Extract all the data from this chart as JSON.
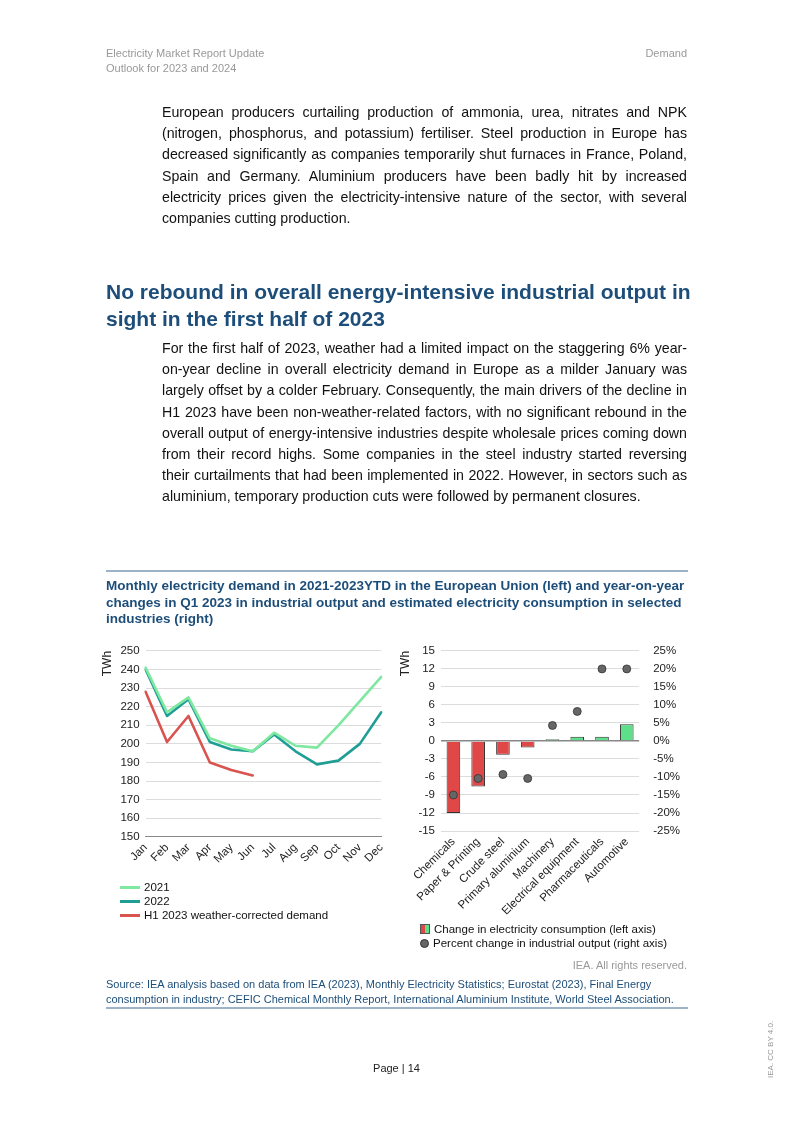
{
  "chart_data": [
    {
      "type": "line",
      "title": "Monthly electricity demand in 2021-2023YTD in the European Union (left) and year-on-year changes in Q1 2023 in industrial output and estimated electricity consumption in selected industries (right)",
      "ylabel": "TWh",
      "annotations": [
        "Electricity Market Report Update",
        "Outlook for 2023 and 2024",
        "Demand",
        "European producers curtailing production of ammonia, urea, nitrates and NPK (nitrogen, phosphorus, and potassium) fertiliser. Steel production in Europe has decreased significantly as companies temporarily shut furnaces in France, Poland, Spain and Germany. Aluminium producers have been badly hit by increased electricity prices given the electricity-intensive nature of the sector, with several companies cutting production.",
        "No rebound in overall energy-intensive industrial output in sight in the first half of 2023",
        "For the first half of 2023, weather had a limited impact on the staggering 6% year-on-year decline in overall electricity demand in Europe as a milder January was largely offset by a colder February. Consequently, the main drivers of the decline in H1 2023 have been non-weather-related factors, with no significant rebound in the overall output of energy-intensive industries despite wholesale prices coming down from their record highs. Some companies in the steel industry started reversing their curtailments that had been implemented in 2022. However, in sectors such as aluminium, temporary production cuts were followed by permanent closures."
      ],
      "categories": [
        "Jan",
        "Feb",
        "Mar",
        "Apr",
        "May",
        "Jun",
        "Jul",
        "Aug",
        "Sep",
        "Oct",
        "Nov",
        "Dec"
      ],
      "series": [
        {
          "name": "2021",
          "color": "#7ee8a0",
          "values": [
            241,
            217,
            225,
            203,
            199,
            196,
            206,
            199,
            198,
            210,
            223,
            236
          ]
        },
        {
          "name": "2022",
          "color": "#1f9e96",
          "values": [
            240,
            215,
            224,
            201,
            197,
            196,
            205,
            196,
            189,
            191,
            200,
            217
          ]
        },
        {
          "name": "H1 2023 weather-corrected demand",
          "color": "#d9534f",
          "values": [
            228,
            201,
            215,
            190,
            186,
            183,
            null,
            null,
            null,
            null,
            null,
            null
          ]
        }
      ],
      "ylim": [
        150,
        250
      ],
      "yticks": [
        150,
        160,
        170,
        180,
        190,
        200,
        210,
        220,
        230,
        240,
        250
      ],
      "grid": "y",
      "legend": "bottom",
      "marker": "none",
      "line_style": "solid"
    },
    {
      "type": "bar",
      "ylabel": "TWh",
      "annotations": [
        "IEA. All rights reserved.",
        "Source: IEA analysis based on data from IEA (2023), Monthly Electricity Statistics; Eurostat (2023), Final Energy consumption in industry; CEFIC Chemical Monthly Report, International Aluminium Institute, World Steel Association.",
        "Page | 14",
        "IEA. CC BY 4.0."
      ],
      "categories": [
        "Chemicals",
        "Paper & Printing",
        "Crude steel",
        "Primary aluminium",
        "Machinery",
        "Electrical equipment",
        "Pharmaceuticals",
        "Automotive"
      ],
      "series": [
        {
          "name": "Change in electricity consumption (left axis)",
          "colors": [
            "#e04848",
            "#e04848",
            "#e04848",
            "#e04848",
            "#5ee08a",
            "#5ee08a",
            "#5ee08a",
            "#5ee08a"
          ],
          "values": [
            -12,
            -7.6,
            -2.3,
            -1.1,
            0.3,
            0.7,
            0.7,
            2.8
          ]
        },
        {
          "name": "Percent change in industrial output (right axis)",
          "type": "scatter",
          "axis": "y2",
          "color": "#666666",
          "x": [
            "Chemicals",
            "Paper & Printing",
            "Crude steel",
            "Primary aluminium",
            "Machinery",
            "Electrical equipment",
            "Pharmaceuticals",
            "Automotive"
          ],
          "values": [
            -15,
            -10.4,
            -9.3,
            -10.4,
            4.3,
            8.2,
            20,
            20
          ]
        }
      ],
      "ylim": [
        -15,
        15
      ],
      "yticks": [
        -15,
        -12,
        -9,
        -6,
        -3,
        0,
        3,
        6,
        9,
        12,
        15
      ],
      "y2lim": [
        -25,
        25
      ],
      "y2ticks": [
        {
          "value": -25,
          "label": "-25%"
        },
        {
          "value": -20,
          "label": "-20%"
        },
        {
          "value": -15,
          "label": "-15%"
        },
        {
          "value": -10,
          "label": "-10%"
        },
        {
          "value": -5,
          "label": "-5%"
        },
        {
          "value": 0,
          "label": "0%"
        },
        {
          "value": 5,
          "label": "5%"
        },
        {
          "value": 10,
          "label": "10%"
        },
        {
          "value": 15,
          "label": "15%"
        },
        {
          "value": 20,
          "label": "20%"
        },
        {
          "value": 25,
          "label": "25%"
        }
      ],
      "grid": "y",
      "legend": "bottom",
      "marker": "circle"
    }
  ]
}
